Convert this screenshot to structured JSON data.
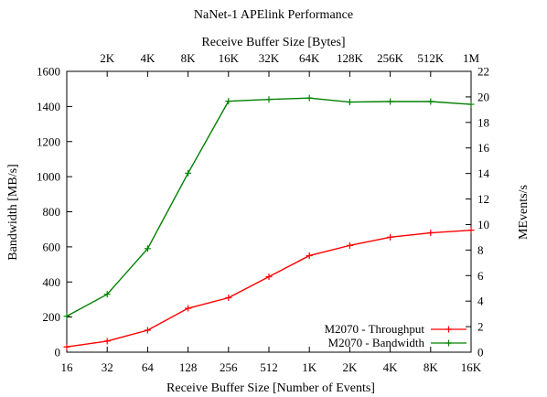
{
  "chart_data": {
    "type": "line",
    "title": "NaNet-1 APElink Performance",
    "xlabel": "Receive Buffer Size [Number of Events]",
    "x2label": "Receive Buffer Size [Bytes]",
    "ylabel": "Bandwidth [MB/s]",
    "y2label": "MEvents/s",
    "x_ticks": [
      "16",
      "32",
      "64",
      "128",
      "256",
      "512",
      "1K",
      "2K",
      "4K",
      "8K",
      "16K"
    ],
    "x2_ticks": [
      "2K",
      "4K",
      "8K",
      "16K",
      "32K",
      "64K",
      "128K",
      "256K",
      "512K",
      "1M"
    ],
    "ylim": [
      0,
      1600
    ],
    "y_ticks": [
      0,
      200,
      400,
      600,
      800,
      1000,
      1200,
      1400,
      1600
    ],
    "y2lim": [
      0,
      22
    ],
    "y2_ticks": [
      0,
      2,
      4,
      6,
      8,
      10,
      12,
      14,
      16,
      18,
      20,
      22
    ],
    "x_scale": "log2",
    "grid": false,
    "legend_position": "bottom-right",
    "series": [
      {
        "name": "M2070 - Throughput",
        "color": "#ff0000",
        "axis": "y",
        "values": [
          30,
          63,
          125,
          250,
          310,
          430,
          550,
          608,
          655,
          680,
          695
        ]
      },
      {
        "name": "M2070 - Bandwidth",
        "color": "#008000",
        "axis": "y",
        "values": [
          205,
          330,
          590,
          1020,
          1430,
          1440,
          1448,
          1425,
          1428,
          1428,
          1412
        ]
      }
    ]
  }
}
